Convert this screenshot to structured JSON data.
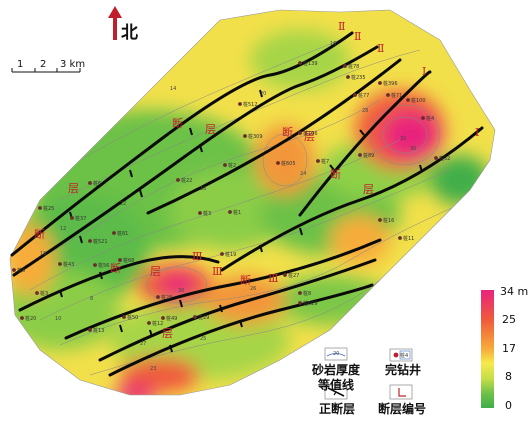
{
  "north_label": "北",
  "scale": {
    "ticks": [
      "1",
      "2",
      "3 km"
    ]
  },
  "colorbar": {
    "unit_top": "34 m",
    "labels": [
      "25",
      "17",
      "8",
      "0"
    ],
    "colors": [
      "#e8237d",
      "#f05a3c",
      "#f7ac3b",
      "#f6ea4a",
      "#c6de48",
      "#6cc147",
      "#3fae49"
    ]
  },
  "legend": {
    "contour_sample": "20",
    "contour_label": "砂岩厚度\n等值线",
    "well_sample": "桩4",
    "well_label": "完钻井",
    "fault_label": "正断层",
    "fault_id_label": "断层编号"
  },
  "fault_ids": [
    "Ⅱ",
    "Ⅱ",
    "Ⅱ",
    "Ⅰ",
    "Ⅰ",
    "Ⅲ",
    "Ⅲ",
    "Ⅲ"
  ],
  "fault_names": [
    "断",
    "层",
    "断",
    "层",
    "断",
    "层",
    "断",
    "层",
    "断",
    "层",
    "断",
    "层"
  ],
  "wells": [
    "桩139",
    "桩78",
    "桩235",
    "桩77",
    "桩396",
    "桩71",
    "桩100",
    "桩512",
    "桩309",
    "桩106",
    "桩605",
    "桩7",
    "桩89",
    "桩4",
    "桩32",
    "桩6",
    "桩25",
    "桩37",
    "桩43",
    "桩6",
    "桩521",
    "桩81",
    "桩56",
    "桩19",
    "桩3",
    "桩50",
    "桩28",
    "桩49",
    "桩12",
    "桩20",
    "桩29",
    "桩13",
    "桩27",
    "桩8",
    "桩629",
    "桩68",
    "桩2",
    "桩3",
    "桩1",
    "桩22",
    "桩16",
    "桩11"
  ],
  "contour_labels": [
    "16",
    "20",
    "24",
    "28",
    "32",
    "14",
    "18",
    "22",
    "26",
    "30",
    "12",
    "15",
    "8",
    "10",
    "25",
    "23",
    "27",
    "30"
  ]
}
